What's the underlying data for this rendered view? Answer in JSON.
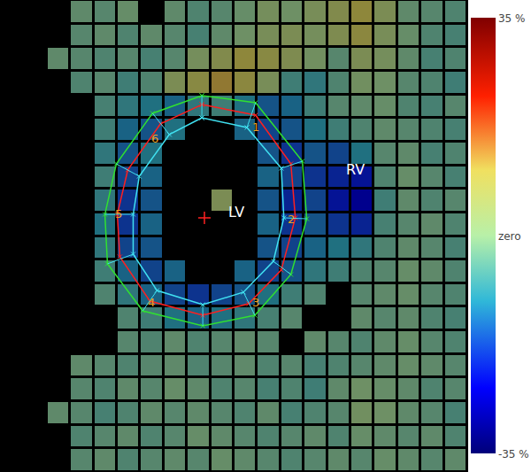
{
  "chart_data": {
    "type": "heatmap",
    "tick_labels": false,
    "xlim": [
      0,
      20
    ],
    "ylim": [
      20,
      0
    ],
    "zlim": [
      -35,
      35
    ],
    "zticks": [
      {
        "value": 35,
        "label": "35 %"
      },
      {
        "value": 0,
        "label": "zero"
      },
      {
        "value": -35,
        "label": "-35 %"
      }
    ],
    "z": [
      [
        null,
        null,
        null,
        -2,
        -3,
        -1,
        null,
        -2,
        -4,
        -3,
        -1,
        2,
        0,
        3,
        6,
        10,
        4,
        -2,
        -3,
        -4
      ],
      [
        null,
        null,
        null,
        -3,
        -2,
        -4,
        -2,
        -3,
        -5,
        -2,
        0,
        3,
        4,
        2,
        5,
        9,
        3,
        -1,
        -4,
        -5
      ],
      [
        null,
        null,
        -2,
        -3,
        -4,
        -3,
        -5,
        -3,
        2,
        6,
        10,
        8,
        5,
        1,
        -3,
        4,
        2,
        -2,
        -5,
        -4
      ],
      [
        null,
        null,
        null,
        -4,
        -3,
        -6,
        -4,
        4,
        8,
        12,
        9,
        3,
        -6,
        -8,
        -4,
        1,
        0,
        -3,
        -4,
        -6
      ],
      [
        null,
        null,
        null,
        null,
        -5,
        -8,
        -10,
        -12,
        -8,
        -6,
        -10,
        -14,
        -12,
        -6,
        -3,
        -2,
        -1,
        -4,
        -5,
        -3
      ],
      [
        null,
        null,
        null,
        null,
        -6,
        -12,
        -14,
        -10,
        null,
        null,
        -12,
        -16,
        -14,
        -10,
        -6,
        -4,
        -2,
        -3,
        -4,
        -5
      ],
      [
        null,
        null,
        null,
        null,
        -8,
        -14,
        -10,
        null,
        null,
        null,
        null,
        -14,
        -18,
        -14,
        -16,
        -10,
        -3,
        -2,
        -5,
        -4
      ],
      [
        null,
        null,
        null,
        null,
        -6,
        -16,
        -12,
        null,
        null,
        null,
        null,
        -12,
        -16,
        -18,
        -20,
        -22,
        -4,
        -1,
        -3,
        -5
      ],
      [
        null,
        null,
        null,
        null,
        -8,
        -18,
        -14,
        null,
        null,
        4,
        null,
        -14,
        -20,
        -16,
        -22,
        -26,
        -6,
        -2,
        -4,
        -3
      ],
      [
        null,
        null,
        null,
        null,
        -10,
        -18,
        -12,
        null,
        null,
        null,
        null,
        -12,
        -18,
        -14,
        -18,
        -20,
        -5,
        -3,
        -2,
        -4
      ],
      [
        null,
        null,
        null,
        null,
        -8,
        -16,
        -14,
        null,
        null,
        null,
        null,
        -14,
        -16,
        -12,
        -10,
        -8,
        -4,
        -2,
        -3,
        -5
      ],
      [
        null,
        null,
        null,
        null,
        -6,
        -12,
        -16,
        -12,
        null,
        null,
        -12,
        -16,
        -14,
        -8,
        -6,
        -4,
        -3,
        -1,
        -2,
        -4
      ],
      [
        null,
        null,
        null,
        null,
        -4,
        -8,
        -12,
        -16,
        -18,
        -16,
        -14,
        -10,
        -6,
        -4,
        null,
        -3,
        -2,
        -1,
        -3,
        -4
      ],
      [
        null,
        null,
        null,
        null,
        null,
        -4,
        -6,
        -10,
        -12,
        -10,
        -8,
        -5,
        -3,
        null,
        null,
        -2,
        -3,
        -2,
        -4,
        -5
      ],
      [
        null,
        null,
        null,
        null,
        null,
        -3,
        -4,
        -2,
        -4,
        -3,
        -2,
        -3,
        null,
        -2,
        -3,
        -4,
        -2,
        -1,
        -3,
        -4
      ],
      [
        null,
        null,
        null,
        -2,
        -3,
        -4,
        -3,
        -2,
        -4,
        -3,
        -2,
        -4,
        -3,
        -5,
        -4,
        -3,
        -2,
        -1,
        -2,
        -3
      ],
      [
        null,
        null,
        null,
        -3,
        -4,
        -2,
        -3,
        -1,
        -2,
        -4,
        -3,
        -5,
        -4,
        -6,
        -2,
        0,
        -1,
        -2,
        -4,
        -3
      ],
      [
        null,
        null,
        -2,
        -3,
        -5,
        -4,
        -2,
        -3,
        -2,
        -3,
        -4,
        -2,
        -5,
        -4,
        -3,
        1,
        0,
        -2,
        -3,
        -5
      ],
      [
        null,
        null,
        null,
        -4,
        -3,
        -2,
        -4,
        -3,
        -1,
        -2,
        -3,
        -4,
        -3,
        -2,
        -4,
        -1,
        -2,
        -3,
        -2,
        -4
      ],
      [
        null,
        null,
        null,
        -3,
        -2,
        -4,
        -3,
        -2,
        -3,
        -1,
        -2,
        -3,
        -4,
        -3,
        -2,
        -3,
        -1,
        -2,
        -3,
        -2
      ]
    ],
    "contours": [
      {
        "color": "#30e030",
        "x": [
          8.64,
          10.94,
          12.94,
          13.13,
          12.45,
          10.91,
          8.68,
          6.11,
          4.6,
          4.49,
          4.98,
          6.53
        ],
        "y": [
          4.05,
          4.35,
          6.83,
          9.27,
          11.63,
          13.36,
          13.81,
          13.17,
          11.18,
          9.08,
          6.94,
          4.8
        ]
      },
      {
        "color": "#ff2020",
        "x": [
          8.64,
          10.94,
          12.45,
          12.64,
          12.04,
          10.64,
          8.68,
          6.42,
          5.13,
          5.02,
          5.47,
          6.87
        ],
        "y": [
          4.43,
          4.88,
          6.94,
          9.23,
          11.44,
          12.87,
          13.36,
          12.76,
          10.88,
          9.08,
          7.2,
          5.25
        ]
      },
      {
        "color": "#40e0f0",
        "x": [
          8.64,
          10.57,
          12.04,
          12.15,
          11.7,
          10.42,
          8.68,
          6.72,
          5.7,
          5.7,
          5.96,
          7.25
        ],
        "y": [
          4.99,
          5.4,
          7.13,
          9.23,
          11.07,
          12.38,
          12.91,
          12.31,
          10.77,
          9.08,
          7.47,
          5.7
        ]
      }
    ],
    "center": {
      "x": 8.75,
      "y": 9.23,
      "color": "#ff2020"
    },
    "annotations": [
      {
        "text": "1",
        "x": 10.94,
        "y": 5.37,
        "color": "#f0a020"
      },
      {
        "text": "2",
        "x": 12.45,
        "y": 9.27,
        "color": "#f0a020"
      },
      {
        "text": "3",
        "x": 10.94,
        "y": 12.83,
        "color": "#f0a020"
      },
      {
        "text": "4",
        "x": 6.49,
        "y": 12.83,
        "color": "#f0a020"
      },
      {
        "text": "5",
        "x": 5.06,
        "y": 9.08,
        "color": "#f0a020"
      },
      {
        "text": "6",
        "x": 6.64,
        "y": 5.89,
        "color": "#f0a020"
      },
      {
        "text": "LV",
        "x": 10.11,
        "y": 9.0,
        "color": "#ffffff"
      },
      {
        "text": "RV",
        "x": 15.21,
        "y": 7.2,
        "color": "#ffffff"
      }
    ]
  }
}
